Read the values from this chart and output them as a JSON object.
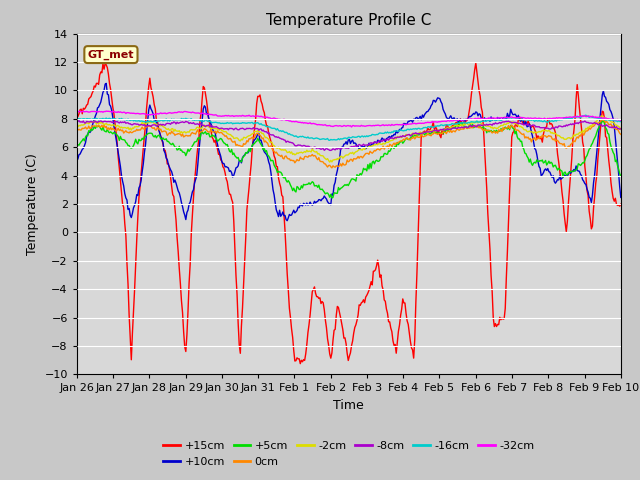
{
  "title": "Temperature Profile C",
  "xlabel": "Time",
  "ylabel": "Temperature (C)",
  "ylim": [
    -10,
    14
  ],
  "fig_bg": "#d8d8d8",
  "plot_bg": "#d8d8d8",
  "legend_label": "GT_met",
  "series_colors": {
    "+15cm": "#ff0000",
    "+10cm": "#0000cc",
    "+5cm": "#00dd00",
    "0cm": "#ff8800",
    "-2cm": "#dddd00",
    "-8cm": "#aa00cc",
    "-16cm": "#00cccc",
    "-32cm": "#ff00ff"
  },
  "xtick_labels": [
    "Jan 26",
    "Jan 27",
    "Jan 28",
    "Jan 29",
    "Jan 30",
    "Jan 31",
    "Feb 1",
    "Feb 2",
    "Feb 3",
    "Feb 4",
    "Feb 5",
    "Feb 6",
    "Feb 7",
    "Feb 8",
    "Feb 9",
    "Feb 10"
  ],
  "num_points": 500
}
